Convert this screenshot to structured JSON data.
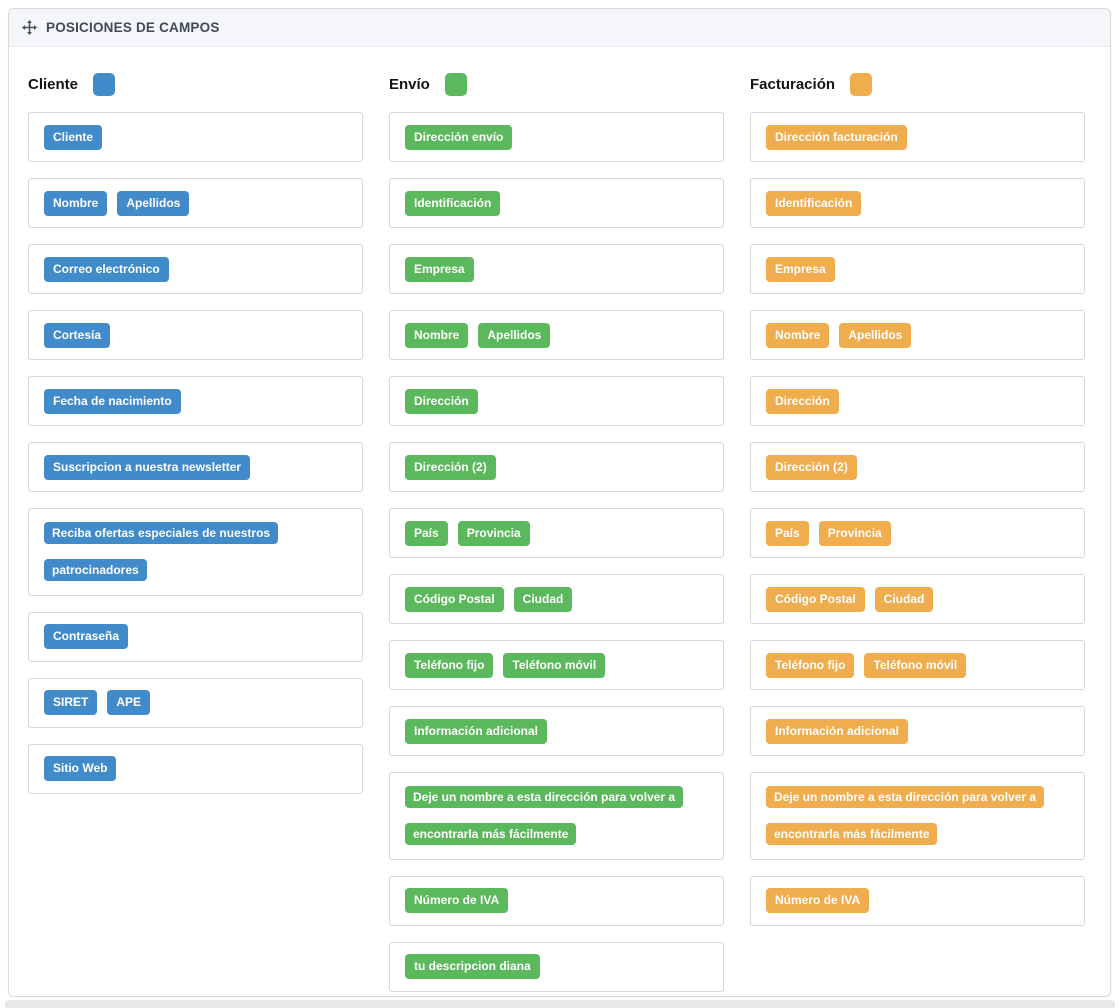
{
  "panel": {
    "title": "POSICIONES DE CAMPOS"
  },
  "columns": [
    {
      "id": "cliente",
      "title": "Cliente",
      "color": "#428bca",
      "rows": [
        [
          "Cliente"
        ],
        [
          "Nombre",
          "Apellidos"
        ],
        [
          "Correo electrónico"
        ],
        [
          "Cortesía"
        ],
        [
          "Fecha de nacimiento"
        ],
        [
          "Suscripcion a nuestra newsletter"
        ],
        [
          "Reciba ofertas especiales de nuestros patrocinadores"
        ],
        [
          "Contraseña"
        ],
        [
          "SIRET",
          "APE"
        ],
        [
          "Sitio Web"
        ]
      ]
    },
    {
      "id": "envio",
      "title": "Envío",
      "color": "#5cb85c",
      "rows": [
        [
          "Dirección envío"
        ],
        [
          "Identificación"
        ],
        [
          "Empresa"
        ],
        [
          "Nombre",
          "Apellidos"
        ],
        [
          "Dirección"
        ],
        [
          "Dirección (2)"
        ],
        [
          "País",
          "Provincia"
        ],
        [
          "Código Postal",
          "Ciudad"
        ],
        [
          "Teléfono fijo",
          "Teléfono móvil"
        ],
        [
          "Información adicional"
        ],
        [
          "Deje un nombre a esta dirección para volver a encontrarla más fácilmente"
        ],
        [
          "Número de IVA"
        ],
        [
          "tu descripcion diana"
        ]
      ]
    },
    {
      "id": "facturacion",
      "title": "Facturación",
      "color": "#f0ad4e",
      "rows": [
        [
          "Dirección facturación"
        ],
        [
          "Identificación"
        ],
        [
          "Empresa"
        ],
        [
          "Nombre",
          "Apellidos"
        ],
        [
          "Dirección"
        ],
        [
          "Dirección (2)"
        ],
        [
          "País",
          "Provincia"
        ],
        [
          "Código Postal",
          "Ciudad"
        ],
        [
          "Teléfono fijo",
          "Teléfono móvil"
        ],
        [
          "Información adicional"
        ],
        [
          "Deje un nombre a esta dirección para volver a encontrarla más fácilmente"
        ],
        [
          "Número de IVA"
        ]
      ]
    }
  ]
}
